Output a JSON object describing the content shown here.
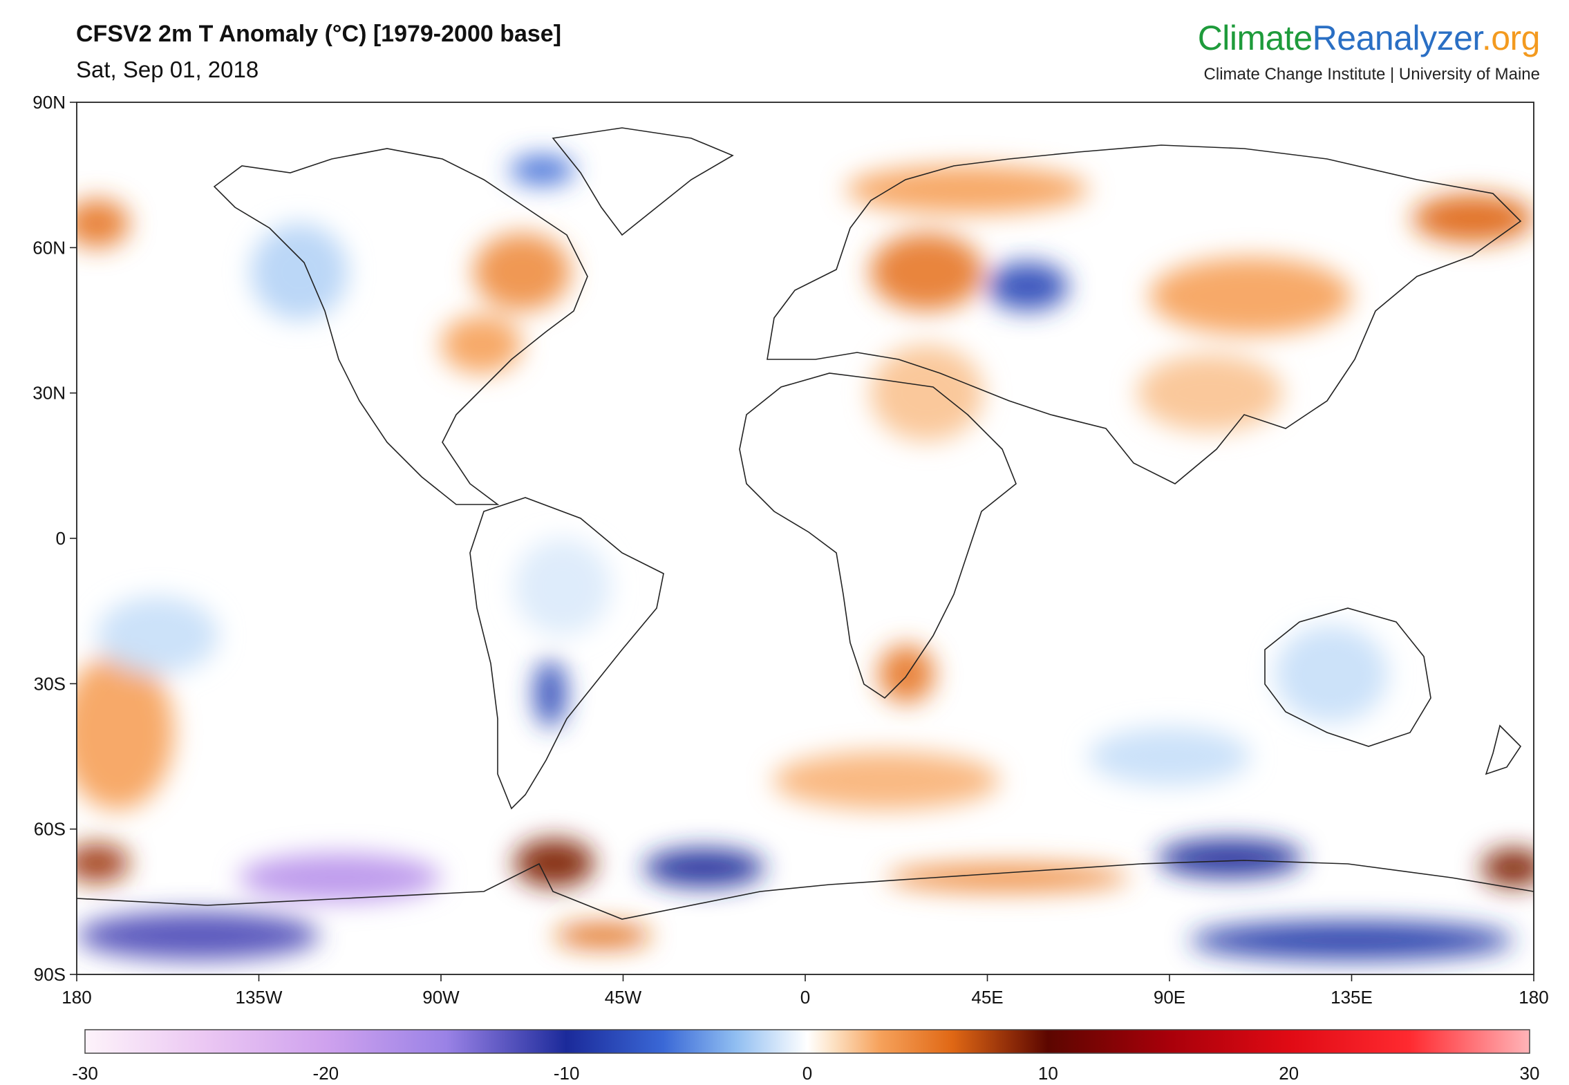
{
  "header": {
    "title": "CFSV2 2m T Anomaly (°C) [1979-2000 base]",
    "date": "Sat, Sep 01, 2018"
  },
  "brand": {
    "part1": "Climate",
    "part2": "Reanalyzer",
    "part3": ".org",
    "tagline": "Climate Change Institute | University of Maine",
    "colors": {
      "part1": "#1e9b3b",
      "part2": "#2a6fc4",
      "part3": "#f39a1f"
    }
  },
  "map": {
    "projection": "equirectangular",
    "lon_range": [
      -180,
      180
    ],
    "lat_range": [
      -90,
      90
    ],
    "lat_labels": [
      "90N",
      "60N",
      "30N",
      "0",
      "30S",
      "60S",
      "90S"
    ],
    "lon_labels": [
      "180",
      "135W",
      "90W",
      "45W",
      "0",
      "45E",
      "90E",
      "135E",
      "180"
    ],
    "anomalies": [
      {
        "lon": 55,
        "lat": 52,
        "rx": 10,
        "ry": 5,
        "value": -8
      },
      {
        "lon": -65,
        "lat": 76,
        "rx": 8,
        "ry": 3,
        "value": -6
      },
      {
        "lon": -63,
        "lat": -32,
        "rx": 4,
        "ry": 7,
        "value": -8
      },
      {
        "lon": -115,
        "lat": -70,
        "rx": 25,
        "ry": 5,
        "value": -18
      },
      {
        "lon": -150,
        "lat": -82,
        "rx": 30,
        "ry": 5,
        "value": -12
      },
      {
        "lon": -25,
        "lat": -68,
        "rx": 15,
        "ry": 4,
        "value": -10
      },
      {
        "lon": 105,
        "lat": -66,
        "rx": 18,
        "ry": 4,
        "value": -10
      },
      {
        "lon": 135,
        "lat": -83,
        "rx": 40,
        "ry": 4,
        "value": -9
      },
      {
        "lon": 30,
        "lat": 55,
        "rx": 14,
        "ry": 8,
        "value": 5
      },
      {
        "lon": 40,
        "lat": 72,
        "rx": 30,
        "ry": 5,
        "value": 3
      },
      {
        "lon": 165,
        "lat": 66,
        "rx": 15,
        "ry": 5,
        "value": 6
      },
      {
        "lon": 110,
        "lat": 50,
        "rx": 25,
        "ry": 8,
        "value": 3
      },
      {
        "lon": -70,
        "lat": 55,
        "rx": 12,
        "ry": 8,
        "value": 4
      },
      {
        "lon": -80,
        "lat": 40,
        "rx": 10,
        "ry": 6,
        "value": 3
      },
      {
        "lon": -175,
        "lat": 65,
        "rx": 8,
        "ry": 5,
        "value": 5
      },
      {
        "lon": 25,
        "lat": -28,
        "rx": 7,
        "ry": 6,
        "value": 5
      },
      {
        "lon": -62,
        "lat": -67,
        "rx": 10,
        "ry": 5,
        "value": 9
      },
      {
        "lon": -50,
        "lat": -82,
        "rx": 12,
        "ry": 2.5,
        "value": 6
      },
      {
        "lon": 50,
        "lat": -70,
        "rx": 30,
        "ry": 3,
        "value": 4
      },
      {
        "lon": 175,
        "lat": -68,
        "rx": 8,
        "ry": 4,
        "value": 9
      },
      {
        "lon": -175,
        "lat": -67,
        "rx": 8,
        "ry": 4,
        "value": 8
      },
      {
        "lon": -170,
        "lat": -40,
        "rx": 14,
        "ry": 16,
        "value": 3
      },
      {
        "lon": 20,
        "lat": -50,
        "rx": 28,
        "ry": 6,
        "value": 2.5
      },
      {
        "lon": 30,
        "lat": 30,
        "rx": 14,
        "ry": 10,
        "value": 2
      },
      {
        "lon": 100,
        "lat": 30,
        "rx": 18,
        "ry": 8,
        "value": 2
      },
      {
        "lon": -160,
        "lat": -20,
        "rx": 15,
        "ry": 8,
        "value": -1.5
      },
      {
        "lon": 130,
        "lat": -28,
        "rx": 14,
        "ry": 10,
        "value": -1.5
      },
      {
        "lon": 90,
        "lat": -45,
        "rx": 20,
        "ry": 6,
        "value": -1.5
      },
      {
        "lon": -125,
        "lat": 55,
        "rx": 12,
        "ry": 10,
        "value": -2
      },
      {
        "lon": -60,
        "lat": -10,
        "rx": 12,
        "ry": 10,
        "value": -1
      }
    ]
  },
  "colorbar": {
    "min": -30,
    "max": 30,
    "tick_labels": [
      "-30",
      "-20",
      "-10",
      "0",
      "10",
      "20",
      "30"
    ],
    "stops": [
      {
        "v": -30,
        "c": "#fdf3fa"
      },
      {
        "v": -25,
        "c": "#ebc7f3"
      },
      {
        "v": -20,
        "c": "#cfa2ee"
      },
      {
        "v": -15,
        "c": "#9a82e6"
      },
      {
        "v": -10,
        "c": "#1b2a9a"
      },
      {
        "v": -6,
        "c": "#3a68d6"
      },
      {
        "v": -3,
        "c": "#8fbdf1"
      },
      {
        "v": -1,
        "c": "#dbeafb"
      },
      {
        "v": 0,
        "c": "#ffffff"
      },
      {
        "v": 1,
        "c": "#fde4c8"
      },
      {
        "v": 3,
        "c": "#f6a25c"
      },
      {
        "v": 6,
        "c": "#e06815"
      },
      {
        "v": 10,
        "c": "#5c0600"
      },
      {
        "v": 15,
        "c": "#a8000a"
      },
      {
        "v": 20,
        "c": "#e00a14"
      },
      {
        "v": 25,
        "c": "#ff2a30"
      },
      {
        "v": 30,
        "c": "#ffb4b8"
      }
    ]
  }
}
